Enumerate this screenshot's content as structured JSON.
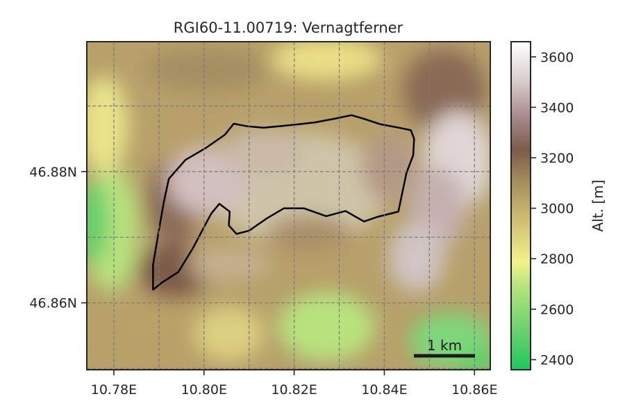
{
  "chart_data": {
    "type": "heatmap",
    "title": "RGI60-11.00719: Vernagtferner",
    "xlabel": "",
    "ylabel": "",
    "x_range": [
      10.774,
      10.8635
    ],
    "y_range": [
      46.8498,
      46.8998
    ],
    "x_ticks": [
      10.78,
      10.8,
      10.82,
      10.84,
      10.86
    ],
    "x_tick_labels": [
      "10.78E",
      "10.80E",
      "10.82E",
      "10.84E",
      "10.86E"
    ],
    "y_ticks": [
      46.86,
      46.88
    ],
    "y_tick_labels": [
      "46.86N",
      "46.88N"
    ],
    "grid": true,
    "colorbar": {
      "label": "Alt. [m]",
      "range": [
        2360,
        3660
      ],
      "ticks": [
        2400,
        2600,
        2800,
        3000,
        3200,
        3400,
        3600
      ],
      "tick_labels": [
        "2400",
        "2600",
        "2800",
        "3000",
        "3200",
        "3400",
        "3600"
      ],
      "colormap": [
        "#1ec75e",
        "#5ed06c",
        "#b3e37c",
        "#f2f28b",
        "#c9b46e",
        "#a38b5c",
        "#7d5a4a",
        "#a8898a",
        "#d8cccc",
        "#ffffff"
      ]
    },
    "scale_bar": {
      "label": "1 km",
      "length_km": 1
    },
    "glacier_outline": {
      "lon": [
        10.8066,
        10.8097,
        10.8132,
        10.8165,
        10.8209,
        10.8246,
        10.8293,
        10.8327,
        10.8357,
        10.8392,
        10.8432,
        10.8459,
        10.8466,
        10.8464,
        10.8449,
        10.8431,
        10.8385,
        10.8355,
        10.8314,
        10.8271,
        10.8222,
        10.8177,
        10.814,
        10.81,
        10.8072,
        10.8055,
        10.8057,
        10.8034,
        10.8016,
        10.8002,
        10.7975,
        10.7943,
        10.7907,
        10.7887,
        10.7887,
        10.7902,
        10.7911,
        10.7922,
        10.7959,
        10.8004,
        10.8046
      ],
      "lat": [
        46.8873,
        46.8869,
        46.8867,
        46.8869,
        46.8872,
        46.8875,
        46.8881,
        46.8886,
        46.888,
        46.8872,
        46.8867,
        46.8863,
        46.885,
        46.8825,
        46.8798,
        46.8739,
        46.8731,
        46.8724,
        46.874,
        46.8732,
        46.8744,
        46.8744,
        46.8729,
        46.871,
        46.8705,
        46.8718,
        46.8739,
        46.8751,
        46.8736,
        46.8718,
        46.8683,
        46.8647,
        46.8631,
        46.862,
        46.8658,
        46.8719,
        46.8754,
        46.8789,
        46.8818,
        46.8836,
        46.8856
      ]
    }
  }
}
